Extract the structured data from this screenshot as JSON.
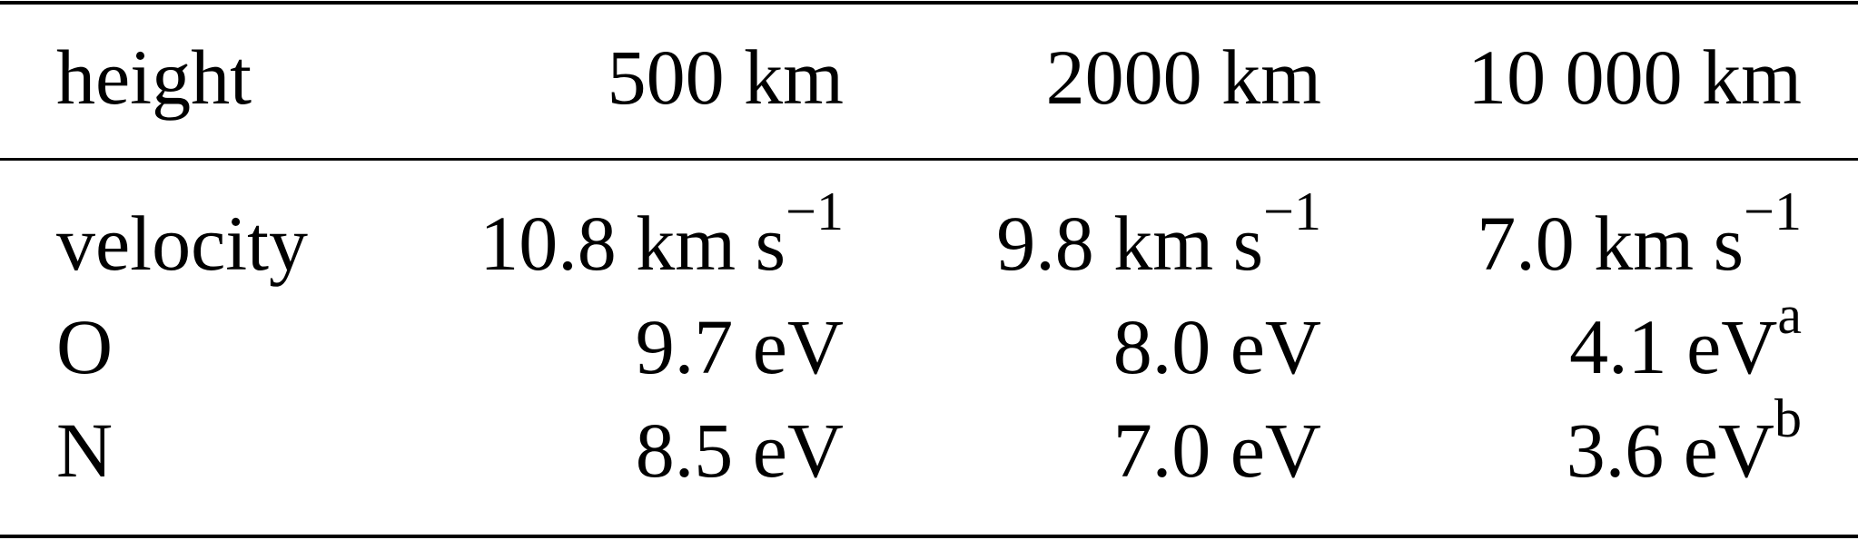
{
  "table": {
    "header": [
      "height",
      "500 km",
      "2000 km",
      "10 000 km"
    ],
    "rows": [
      {
        "label": "velocity",
        "cells": [
          {
            "value": "10.8 km s",
            "sup": "−1"
          },
          {
            "value": "9.8 km s",
            "sup": "−1"
          },
          {
            "value": "7.0 km s",
            "sup": "−1"
          }
        ]
      },
      {
        "label": "O",
        "cells": [
          {
            "value": "9.7 eV",
            "sup": ""
          },
          {
            "value": "8.0 eV",
            "sup": ""
          },
          {
            "value": "4.1 eV",
            "sup": "a"
          }
        ]
      },
      {
        "label": "N",
        "cells": [
          {
            "value": "8.5 eV",
            "sup": ""
          },
          {
            "value": "7.0 eV",
            "sup": ""
          },
          {
            "value": "3.6 eV",
            "sup": "b"
          }
        ]
      }
    ]
  }
}
